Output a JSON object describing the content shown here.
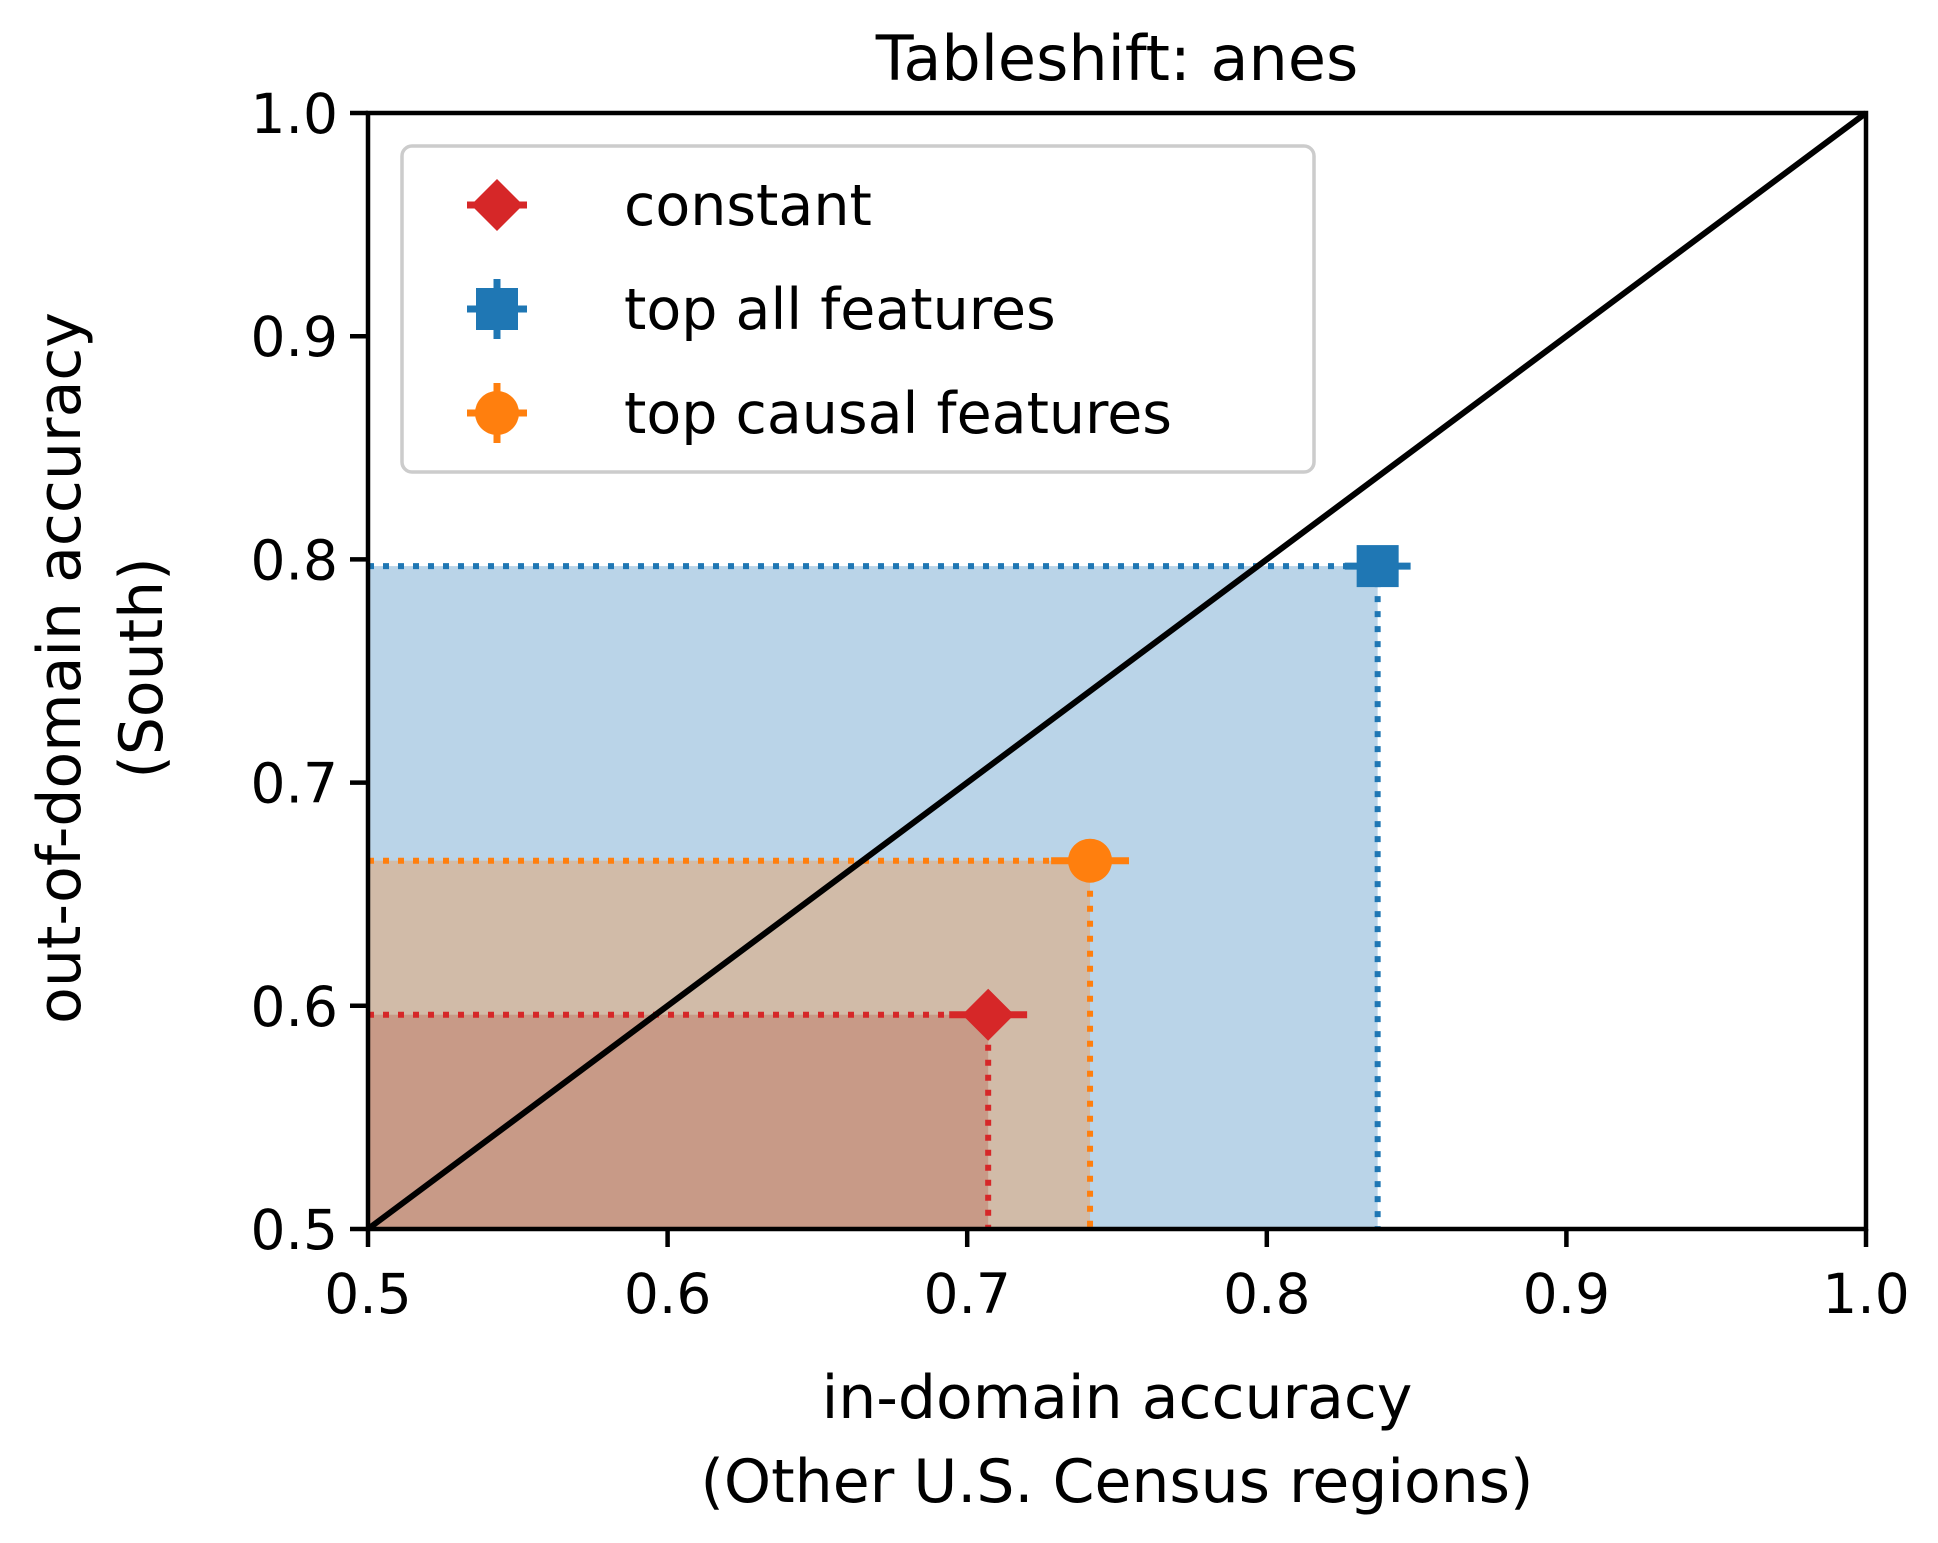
{
  "chart_data": {
    "type": "scatter",
    "title": "Tableshift: anes",
    "xlabel": [
      "in-domain accuracy",
      "(Other U.S. Census regions)"
    ],
    "ylabel": [
      "out-of-domain accuracy",
      "(South)"
    ],
    "xlim": [
      0.5,
      1.0
    ],
    "ylim": [
      0.5,
      1.0
    ],
    "xticks": [
      "0.5",
      "0.6",
      "0.7",
      "0.8",
      "0.9",
      "1.0"
    ],
    "yticks": [
      "0.5",
      "0.6",
      "0.7",
      "0.8",
      "0.9",
      "1.0"
    ],
    "grid": false,
    "legend_position": "top-left",
    "diagonal": {
      "from": [
        0.5,
        0.5
      ],
      "to": [
        1.0,
        1.0
      ],
      "color": "#000000"
    },
    "series": [
      {
        "name": "top all features",
        "marker": "square",
        "color": "#1f77b4",
        "fill": "#bad4e8",
        "x": 0.837,
        "y": 0.797,
        "xerr": 0.011,
        "yerr": 0.002
      },
      {
        "name": "top causal features",
        "marker": "circle",
        "color": "#ff7f0e",
        "fill": "#d1bba8",
        "x": 0.741,
        "y": 0.665,
        "xerr": 0.013,
        "yerr": 0.002
      },
      {
        "name": "constant",
        "marker": "diamond",
        "color": "#d62728",
        "fill": "#c89a87",
        "x": 0.707,
        "y": 0.596,
        "xerr": 0.013,
        "yerr": 0.0
      }
    ],
    "legend_order": [
      "constant",
      "top all features",
      "top causal features"
    ]
  }
}
